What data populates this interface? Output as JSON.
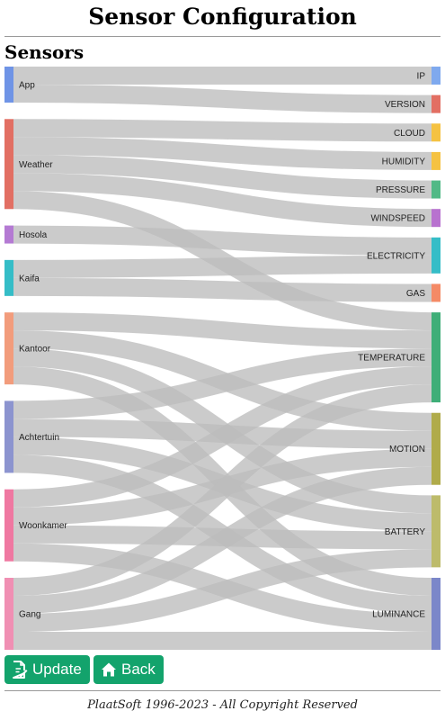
{
  "header": {
    "title": "Sensor Configuration"
  },
  "section": {
    "title": "Sensors"
  },
  "chart_data": {
    "type": "sankey",
    "sources": [
      "App",
      "Weather",
      "Hosola",
      "Kaifa",
      "Kantoor",
      "Achtertuin",
      "Woonkamer",
      "Gang"
    ],
    "targets": [
      "IP",
      "VERSION",
      "CLOUD",
      "HUMIDITY",
      "PRESSURE",
      "WINDSPEED",
      "ELECTRICITY",
      "GAS",
      "TEMPERATURE",
      "MOTION",
      "BATTERY",
      "LUMINANCE"
    ],
    "links": [
      [
        "App",
        "IP",
        1
      ],
      [
        "App",
        "VERSION",
        1
      ],
      [
        "Weather",
        "CLOUD",
        1
      ],
      [
        "Weather",
        "HUMIDITY",
        1
      ],
      [
        "Weather",
        "PRESSURE",
        1
      ],
      [
        "Weather",
        "WINDSPEED",
        1
      ],
      [
        "Weather",
        "TEMPERATURE",
        1
      ],
      [
        "Hosola",
        "ELECTRICITY",
        1
      ],
      [
        "Kaifa",
        "ELECTRICITY",
        1
      ],
      [
        "Kaifa",
        "GAS",
        1
      ],
      [
        "Kantoor",
        "TEMPERATURE",
        1
      ],
      [
        "Kantoor",
        "MOTION",
        1
      ],
      [
        "Kantoor",
        "BATTERY",
        1
      ],
      [
        "Kantoor",
        "LUMINANCE",
        1
      ],
      [
        "Achtertuin",
        "TEMPERATURE",
        1
      ],
      [
        "Achtertuin",
        "MOTION",
        1
      ],
      [
        "Achtertuin",
        "BATTERY",
        1
      ],
      [
        "Achtertuin",
        "LUMINANCE",
        1
      ],
      [
        "Woonkamer",
        "TEMPERATURE",
        1
      ],
      [
        "Woonkamer",
        "MOTION",
        1
      ],
      [
        "Woonkamer",
        "BATTERY",
        1
      ],
      [
        "Woonkamer",
        "LUMINANCE",
        1
      ],
      [
        "Gang",
        "TEMPERATURE",
        1
      ],
      [
        "Gang",
        "MOTION",
        1
      ],
      [
        "Gang",
        "BATTERY",
        1
      ],
      [
        "Gang",
        "LUMINANCE",
        1
      ]
    ],
    "colors": {
      "App": "#6f94e6",
      "Weather": "#e26f63",
      "Hosola": "#b47ad3",
      "Kaifa": "#35bdc7",
      "Kantoor": "#f29c7c",
      "Achtertuin": "#8c94cf",
      "Woonkamer": "#ef78a1",
      "Gang": "#f08fb3",
      "IP": "#7fa9ee",
      "VERSION": "#e26f63",
      "CLOUD": "#f5c242",
      "HUMIDITY": "#f5c242",
      "PRESSURE": "#51b986",
      "WINDSPEED": "#b872cf",
      "ELECTRICITY": "#35bdc7",
      "GAS": "#f48a66",
      "TEMPERATURE": "#3fae78",
      "MOTION": "#b0ab4a",
      "BATTERY": "#bdbb6b",
      "LUMINANCE": "#7b87c9"
    },
    "link_color": "#bdbdbd"
  },
  "buttons": {
    "update": "Update",
    "back": "Back"
  },
  "footer": {
    "text": "PlaatSoft 1996-2023 - All Copyright Reserved"
  }
}
